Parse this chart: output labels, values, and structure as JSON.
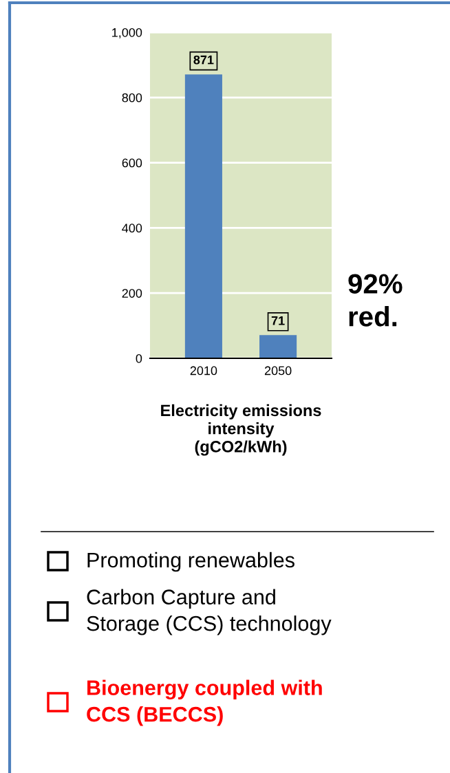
{
  "chart_data": {
    "type": "bar",
    "categories": [
      "2010",
      "2050"
    ],
    "values": [
      871,
      71
    ],
    "color": "#4f81bd",
    "ylim": [
      0,
      1000
    ],
    "yticks": [
      0,
      200,
      400,
      600,
      800,
      {
        "value": 1000,
        "label": "1,000"
      }
    ],
    "grid": "y",
    "data_labels": true,
    "xlabel": "Electricity emissions\nintensity\n(gCO2/kWh)",
    "annotations": [
      "92%\nred.",
      "Promoting renewables",
      "Carbon Capture and\nStorage (CCS) technology",
      "Bioenergy coupled with\nCCS (BECCS)"
    ]
  }
}
